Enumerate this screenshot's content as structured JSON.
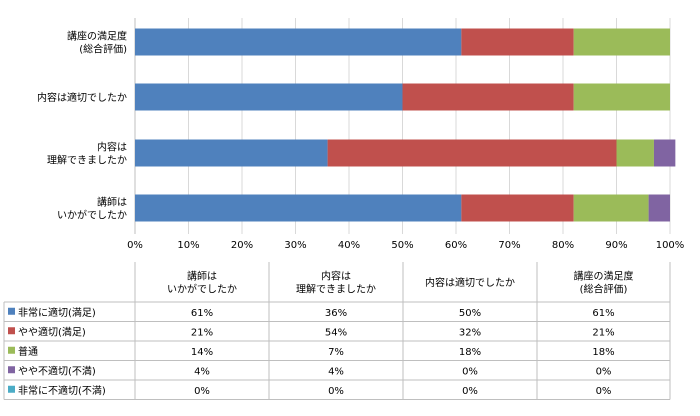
{
  "chart_data": {
    "type": "bar",
    "orientation": "horizontal",
    "stacked": "percent",
    "categories": [
      [
        "講師は",
        "いかがでしたか"
      ],
      [
        "内容は",
        "理解できましたか"
      ],
      [
        "内容は適切でしたか"
      ],
      [
        "講座の満足度",
        "(総合評価)"
      ]
    ],
    "series": [
      {
        "name": "非常に適切(満足)",
        "color": "#4F81BD",
        "values": [
          61,
          36,
          50,
          61
        ],
        "labels": [
          "61%",
          "36%",
          "50%",
          "61%"
        ]
      },
      {
        "name": "やや適切(満足)",
        "color": "#C0504D",
        "values": [
          21,
          54,
          32,
          21
        ],
        "labels": [
          "21%",
          "54%",
          "32%",
          "21%"
        ]
      },
      {
        "name": "普通",
        "color": "#9BBB59",
        "values": [
          14,
          7,
          18,
          18
        ],
        "labels": [
          "14%",
          "7%",
          "18%",
          "18%"
        ]
      },
      {
        "name": "やや不適切(不満)",
        "color": "#8064A2",
        "values": [
          4,
          4,
          0,
          0
        ],
        "labels": [
          "4%",
          "4%",
          "0%",
          "0%"
        ]
      },
      {
        "name": "非常に不適切(不満)",
        "color": "#4BACC6",
        "values": [
          0,
          0,
          0,
          0
        ],
        "labels": [
          "0%",
          "0%",
          "0%",
          "0%"
        ]
      }
    ],
    "x_ticks": [
      "0%",
      "10%",
      "20%",
      "30%",
      "40%",
      "50%",
      "60%",
      "70%",
      "80%",
      "90%",
      "100%"
    ],
    "xlim": [
      0,
      100
    ],
    "grid": true,
    "legend": "data-table-below"
  }
}
